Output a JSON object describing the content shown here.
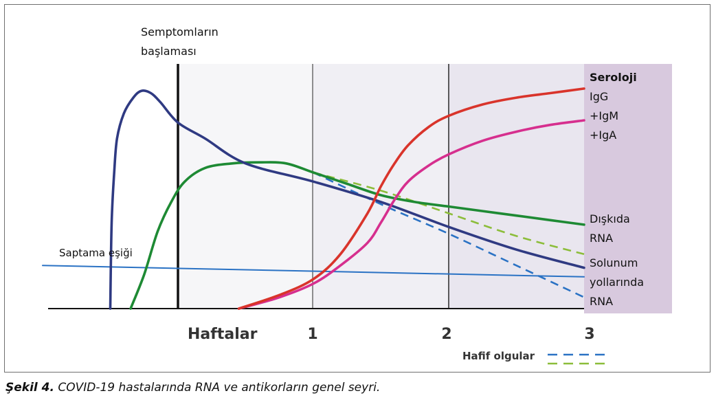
{
  "chart_data": {
    "type": "line",
    "title": "",
    "xlabel": "Haftalar",
    "ylabel": "",
    "x_ticks": [
      "1",
      "2",
      "3"
    ],
    "xlim": [
      -1,
      3
    ],
    "ylim": [
      0,
      1
    ],
    "onset_label": [
      "Semptomların",
      "başlaması"
    ],
    "threshold_label": "Saptama eşiği",
    "serology_header": "Seroloji",
    "legend": {
      "label": "Hafif olgular",
      "colors": [
        "#2a72c4",
        "#8cbd3a"
      ]
    },
    "series": [
      {
        "key": "respiratory",
        "name": [
          "Solunum",
          "yollarında",
          "RNA"
        ],
        "color": "#2f3a82",
        "x": [
          -0.5,
          -0.49,
          -0.47,
          -0.45,
          -0.4,
          -0.33,
          -0.27,
          -0.2,
          -0.13,
          0.0,
          0.2,
          0.5,
          1.0,
          1.5,
          2.0,
          2.5,
          3.0
        ],
        "y": [
          0.0,
          0.38,
          0.61,
          0.75,
          0.86,
          0.93,
          0.96,
          0.95,
          0.91,
          0.82,
          0.75,
          0.64,
          0.56,
          0.47,
          0.36,
          0.26,
          0.18
        ]
      },
      {
        "key": "stool",
        "name": [
          "Dışkıda",
          "RNA"
        ],
        "color": "#1e8a34",
        "x": [
          -0.35,
          -0.25,
          -0.15,
          -0.05,
          0.05,
          0.2,
          0.4,
          0.6,
          0.8,
          1.0,
          1.25,
          1.5,
          1.75,
          2.0,
          2.25,
          2.5,
          2.75,
          3.0
        ],
        "y": [
          0.0,
          0.15,
          0.34,
          0.47,
          0.56,
          0.62,
          0.64,
          0.645,
          0.64,
          0.6,
          0.55,
          0.5,
          0.47,
          0.45,
          0.43,
          0.41,
          0.39,
          0.37
        ]
      },
      {
        "key": "igg",
        "name": [
          "IgG",
          "+IgM"
        ],
        "color": "#d9342b",
        "x": [
          0.45,
          0.75,
          1.0,
          1.2,
          1.4,
          1.5,
          1.6,
          1.7,
          1.85,
          2.0,
          2.25,
          2.5,
          2.75,
          3.0
        ],
        "y": [
          0.0,
          0.06,
          0.13,
          0.24,
          0.42,
          0.54,
          0.64,
          0.72,
          0.8,
          0.85,
          0.9,
          0.93,
          0.95,
          0.97
        ]
      },
      {
        "key": "iga",
        "name": [
          "+IgA"
        ],
        "color": "#d62f8e",
        "x": [
          0.45,
          0.75,
          1.0,
          1.2,
          1.4,
          1.5,
          1.6,
          1.7,
          1.85,
          2.0,
          2.25,
          2.5,
          2.75,
          3.0
        ],
        "y": [
          0.0,
          0.05,
          0.11,
          0.19,
          0.29,
          0.38,
          0.48,
          0.56,
          0.63,
          0.68,
          0.74,
          0.78,
          0.81,
          0.83
        ]
      },
      {
        "key": "threshold",
        "name": "Saptama eşiği",
        "color": "#2a72c4",
        "x": [
          -1.0,
          3.0
        ],
        "y": [
          0.19,
          0.14
        ]
      },
      {
        "key": "mild_respiratory",
        "name": "Hafif olgular",
        "color": "#2a72c4",
        "dashed": true,
        "x": [
          1.0,
          1.5,
          2.0,
          2.5,
          3.0
        ],
        "y": [
          0.6,
          0.46,
          0.33,
          0.19,
          0.05
        ]
      },
      {
        "key": "mild_stool",
        "name": "Hafif olgular",
        "color": "#8cbd3a",
        "dashed": true,
        "x": [
          1.0,
          1.5,
          2.0,
          2.5,
          3.0
        ],
        "y": [
          0.6,
          0.52,
          0.42,
          0.32,
          0.24
        ]
      }
    ]
  },
  "caption": {
    "label": "Şekil 4.",
    "text": " COVID-19 hastalarında RNA ve antikorların genel seyri."
  }
}
